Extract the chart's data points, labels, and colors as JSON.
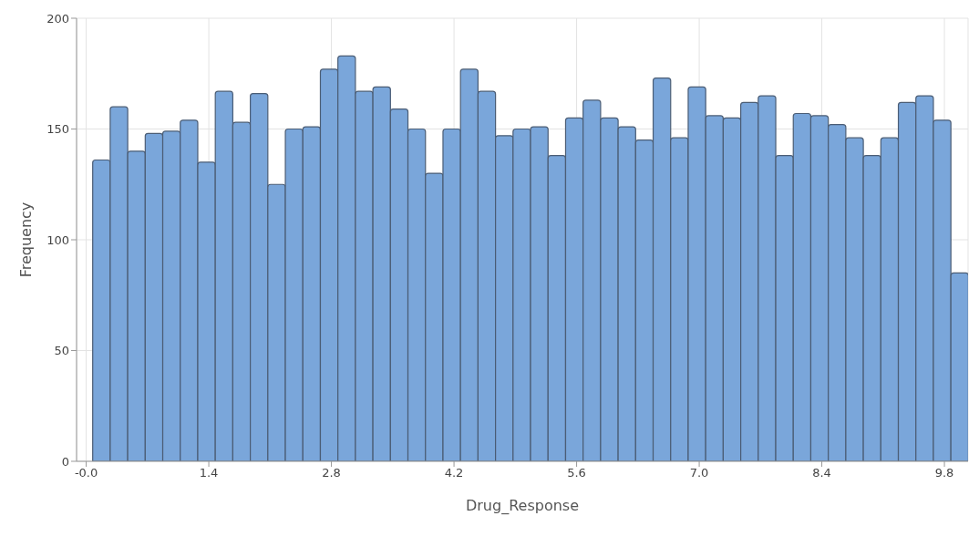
{
  "chart_data": {
    "type": "histogram",
    "xlabel": "Drug_Response",
    "ylabel": "Frequency",
    "bins": [
      0.07,
      0.27,
      0.47,
      0.67,
      0.87,
      1.07,
      1.27,
      1.47,
      1.67,
      1.87,
      2.07,
      2.27,
      2.47,
      2.67,
      2.87,
      3.07,
      3.27,
      3.47,
      3.67,
      3.87,
      4.07,
      4.27,
      4.47,
      4.67,
      4.87,
      5.07,
      5.27,
      5.47,
      5.67,
      5.87,
      6.07,
      6.27,
      6.47,
      6.67,
      6.87,
      7.07,
      7.27,
      7.47,
      7.67,
      7.87,
      8.07,
      8.27,
      8.47,
      8.67,
      8.87,
      9.07,
      9.27,
      9.47,
      9.67,
      9.87,
      10.07
    ],
    "values": [
      136,
      160,
      140,
      148,
      149,
      154,
      135,
      167,
      153,
      166,
      125,
      150,
      151,
      177,
      183,
      167,
      169,
      159,
      150,
      130,
      150,
      177,
      167,
      147,
      150,
      151,
      138,
      155,
      163,
      155,
      151,
      145,
      173,
      146,
      169,
      156,
      155,
      162,
      165,
      138,
      157,
      156,
      152,
      146,
      138,
      146,
      162,
      165,
      154,
      85
    ],
    "color": "#7aa6da",
    "xlim": [
      -0.11,
      10.07
    ],
    "xticks": [
      {
        "value": 0,
        "label": "-0.0"
      },
      1.4,
      2.8,
      4.2,
      5.6,
      {
        "value": 7,
        "label": "7.0"
      },
      8.4,
      9.8
    ],
    "ylim": [
      0,
      200
    ],
    "yticks": [
      0,
      50,
      100,
      150,
      200
    ],
    "grid": true
  }
}
